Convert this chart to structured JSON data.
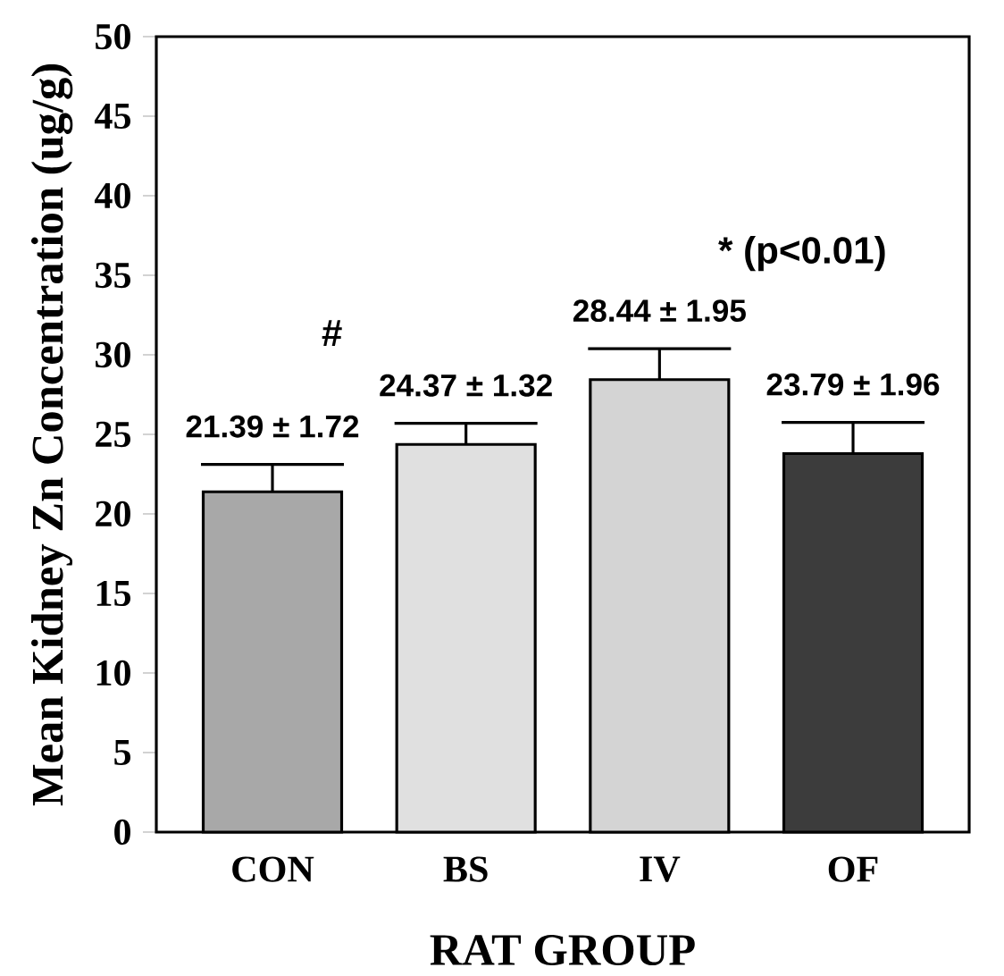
{
  "chart_data": {
    "type": "bar",
    "xlabel": "RAT GROUP",
    "ylabel": "Mean Kidney Zn Concentration  (ug/g)",
    "categories": [
      "CON",
      "BS",
      "IV",
      "OF"
    ],
    "values": [
      21.39,
      24.37,
      28.44,
      23.79
    ],
    "errors": [
      1.72,
      1.32,
      1.95,
      1.96
    ],
    "value_labels": [
      "21.39  ±  1.72",
      "24.37  ±  1.32",
      "28.44  ±  1.95",
      "23.79  ±  1.96"
    ],
    "colors": [
      "#a8a8a8",
      "#e0e0e0",
      "#d4d4d4",
      "#3c3c3c"
    ],
    "annotations": [
      "#",
      "* (p<0.01)"
    ],
    "ylim": [
      0,
      50
    ],
    "yticks": [
      0,
      5,
      10,
      15,
      20,
      25,
      30,
      35,
      40,
      45,
      50
    ],
    "grid": false
  }
}
